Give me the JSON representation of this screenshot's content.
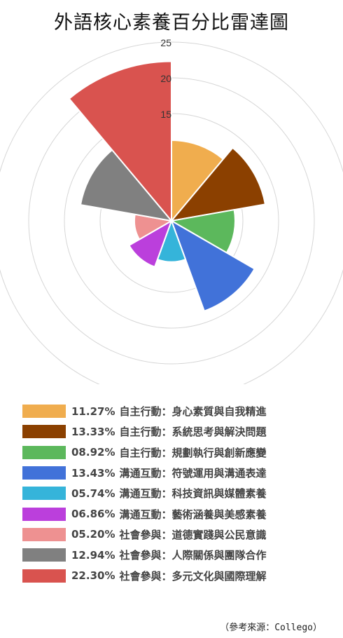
{
  "chart_data": {
    "type": "polar_area",
    "title": "外語核心素養百分比雷達圖",
    "r_ticks": [
      "25",
      "20",
      "15"
    ],
    "rlim": [
      0,
      25
    ],
    "grid": true,
    "legend_position": "bottom",
    "slices": [
      {
        "pct": "11.27%",
        "label": "自主行動：身心素質與自我精進",
        "value": 11.27,
        "color": "#f0ad4e"
      },
      {
        "pct": "13.33%",
        "label": "自主行動：系統思考與解決問題",
        "value": 13.33,
        "color": "#8b4000"
      },
      {
        "pct": "08.92%",
        "label": "自主行動：規劃執行與創新應變",
        "value": 8.92,
        "color": "#5cb85c"
      },
      {
        "pct": "13.43%",
        "label": "溝通互動：符號運用與溝通表達",
        "value": 13.43,
        "color": "#4172d9"
      },
      {
        "pct": "05.74%",
        "label": "溝通互動：科技資訊與媒體素養",
        "value": 5.74,
        "color": "#35b4da"
      },
      {
        "pct": "06.86%",
        "label": "溝通互動：藝術涵養與美感素養",
        "value": 6.86,
        "color": "#bb3fdc"
      },
      {
        "pct": "05.20%",
        "label": "社會參與：道德實踐與公民意識",
        "value": 5.2,
        "color": "#ee9191"
      },
      {
        "pct": "12.94%",
        "label": "社會參與：人際關係與團隊合作",
        "value": 12.94,
        "color": "#808080"
      },
      {
        "pct": "22.30%",
        "label": "社會參與：多元文化與國際理解",
        "value": 22.3,
        "color": "#d9534f"
      }
    ]
  },
  "source": "（參考來源：Collego）"
}
